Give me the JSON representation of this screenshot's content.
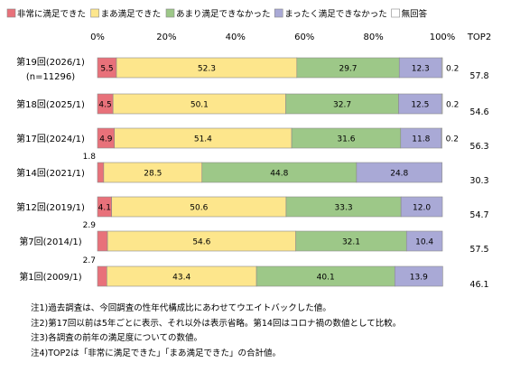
{
  "chart_data": {
    "type": "bar",
    "stacked": "100%",
    "orientation": "horizontal",
    "series": [
      {
        "name": "非常に満足できた",
        "color": "#e8717a",
        "values": [
          5.5,
          4.5,
          4.9,
          1.8,
          4.1,
          2.9,
          2.7
        ]
      },
      {
        "name": "まあ満足できた",
        "color": "#fde68c",
        "values": [
          52.3,
          50.1,
          51.4,
          28.5,
          50.6,
          54.6,
          43.4
        ]
      },
      {
        "name": "あまり満足できなかった",
        "color": "#9dc888",
        "values": [
          29.7,
          32.7,
          31.6,
          44.8,
          33.3,
          32.1,
          40.1
        ]
      },
      {
        "name": "まったく満足できなかった",
        "color": "#a9a9d6",
        "values": [
          12.3,
          12.5,
          11.8,
          24.8,
          12.0,
          10.4,
          13.9
        ]
      },
      {
        "name": "無回答",
        "color": "#ffffff",
        "values": [
          0.2,
          0.2,
          0.2,
          null,
          null,
          null,
          null
        ]
      }
    ],
    "categories": [
      {
        "label": "第19回(2026/1)",
        "sublabel": "(n=11296)"
      },
      {
        "label": "第18回(2025/1)",
        "sublabel": ""
      },
      {
        "label": "第17回(2024/1)",
        "sublabel": ""
      },
      {
        "label": "第14回(2021/1)",
        "sublabel": ""
      },
      {
        "label": "第12回(2019/1)",
        "sublabel": ""
      },
      {
        "label": "第7回(2014/1)",
        "sublabel": ""
      },
      {
        "label": "第1回(2009/1)",
        "sublabel": ""
      }
    ],
    "top2": {
      "header": "TOP2",
      "values": [
        "57.8",
        "54.6",
        "56.3",
        "30.3",
        "54.7",
        "57.5",
        "46.1"
      ]
    },
    "x_ticks": [
      "0%",
      "20%",
      "40%",
      "60%",
      "80%",
      "100%"
    ],
    "xlim": [
      0,
      100
    ],
    "legend_position": "top",
    "grid": false
  },
  "notes": [
    "注1)過去調査は、今回調査の性年代構成比にあわせてウエイトバックした値。",
    "注2)第17回以前は5年ごとに表示、それ以外は表示省略。第14回はコロナ禍の数値として比較。",
    "注3)各調査の前年の満足度についての数値。",
    "注4)TOP2は「非常に満足できた」「まあ満足できた」の合計値。"
  ]
}
